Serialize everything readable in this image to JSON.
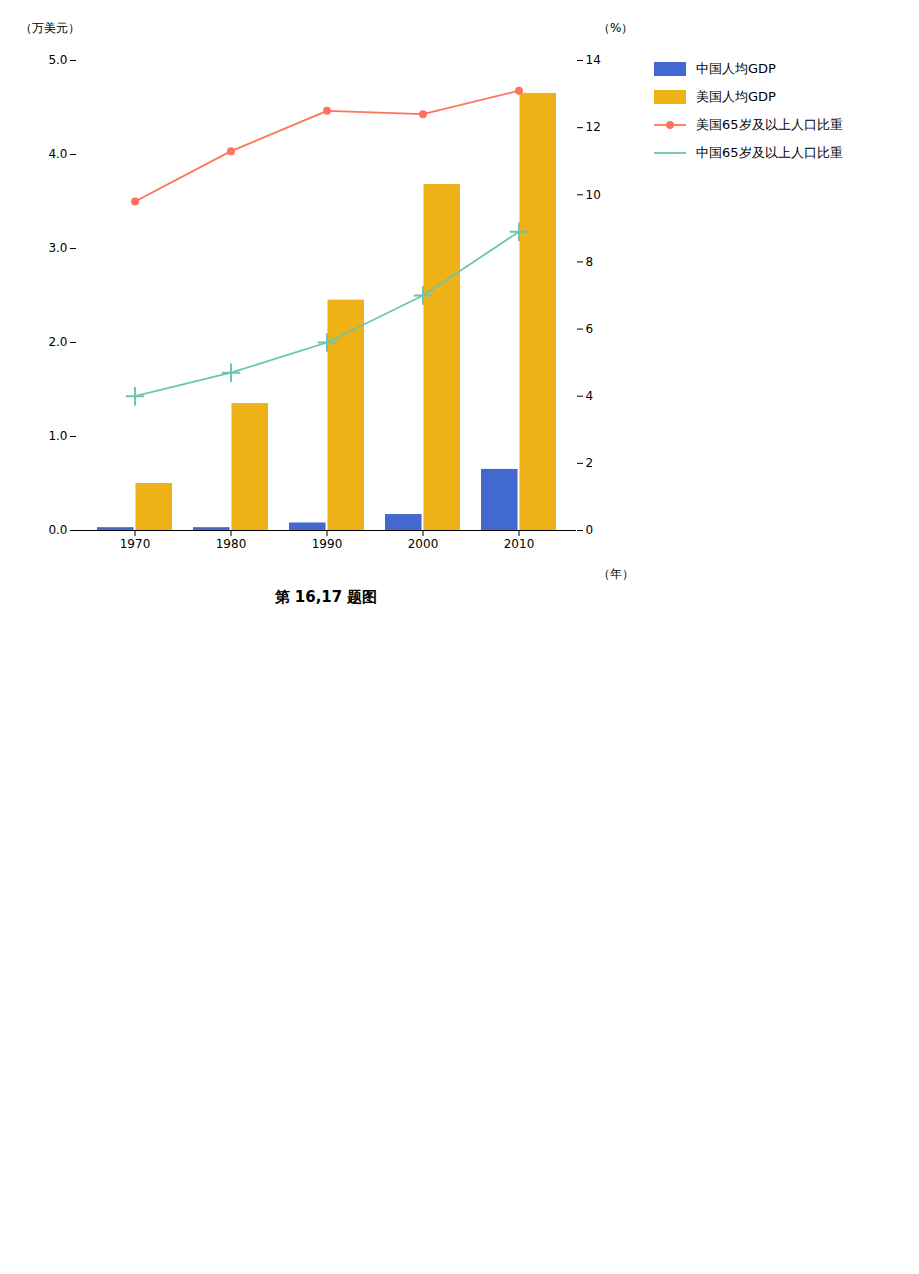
{
  "chart_data": {
    "type": "bar",
    "title": "第 16,17 题图",
    "x_label": "（年）",
    "y_label": "（万美元）",
    "y2_label": "（%）",
    "categories": [
      "1970",
      "1980",
      "1990",
      "2000",
      "2010"
    ],
    "series": [
      {
        "name": "中国人均GDP",
        "type": "bar",
        "values": [
          0.03,
          0.03,
          0.08,
          0.17,
          0.65
        ]
      },
      {
        "name": "美国人均GDP",
        "type": "bar",
        "values": [
          0.5,
          1.35,
          2.45,
          3.68,
          4.65
        ]
      },
      {
        "name": "美国65岁及以上人口比重",
        "type": "line",
        "axis": "y2",
        "marker": "o",
        "values": [
          9.8,
          11.3,
          12.5,
          12.4,
          13.1
        ]
      },
      {
        "name": "中国65岁及以上人口比重",
        "type": "line",
        "axis": "y2",
        "marker": "+",
        "values": [
          4.0,
          4.7,
          5.6,
          7.0,
          8.9
        ]
      }
    ],
    "ylim": [
      0,
      5
    ],
    "yticks": [
      0,
      1,
      2,
      3,
      4,
      5
    ],
    "y2lim": [
      0,
      14
    ],
    "y2ticks": [
      0,
      2,
      4,
      6,
      8,
      10,
      12,
      14
    ],
    "grid": false,
    "legend": "right"
  }
}
